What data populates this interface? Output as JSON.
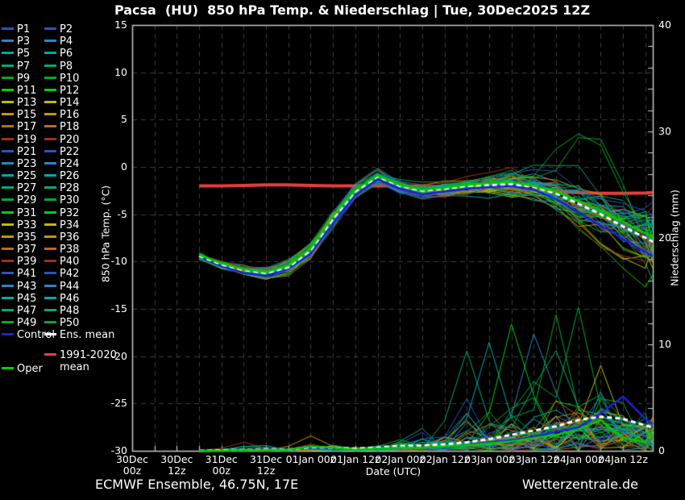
{
  "title": "Pacsa  (HU)  850 hPa Temp. & Niederschlag | Tue, 30Dec2025 12Z",
  "footer": {
    "left": "ECMWF Ensemble, 46.75N, 17E",
    "right": "Wetterzentrale.de"
  },
  "legend": {
    "member_labels": [
      "P1",
      "P2",
      "P3",
      "P4",
      "P5",
      "P6",
      "P7",
      "P8",
      "P9",
      "P10",
      "P11",
      "P12",
      "P13",
      "P14",
      "P15",
      "P16",
      "P17",
      "P18",
      "P19",
      "P20",
      "P21",
      "P22",
      "P23",
      "P24",
      "P25",
      "P26",
      "P27",
      "P28",
      "P29",
      "P30",
      "P31",
      "P32",
      "P33",
      "P34",
      "P35",
      "P36",
      "P37",
      "P38",
      "P39",
      "P40",
      "P41",
      "P42",
      "P43",
      "P44",
      "P45",
      "P46",
      "P47",
      "P48",
      "P49",
      "P50"
    ],
    "specials": [
      {
        "label": "Control",
        "color": "#1e1ee0"
      },
      {
        "label": "Ens. mean",
        "color": "#ffffff"
      },
      {
        "label": "1991-2020",
        "color": "#e64040"
      },
      {
        "label": "mean",
        "color": null
      },
      {
        "label": "Oper",
        "color": "#00cd00"
      }
    ]
  },
  "chart_data": {
    "type": "line",
    "title": "Pacsa  (HU)  850 hPa Temp. & Niederschlag | Tue, 30Dec2025 12Z",
    "xlabel": "Date (UTC)",
    "ylabel_left": "850 hPa Temp. (°C)",
    "ylabel_right": "Niederschlag (mm)",
    "x_tick_labels": [
      "30Dec 00z",
      "30Dec 12z",
      "31Dec 00z",
      "31Dec 12z",
      "01Jan 00z",
      "01Jan 12z",
      "02Jan 00z",
      "02Jan 12z",
      "03Jan 00z",
      "03Jan 12z",
      "04Jan 00z",
      "04Jan 12z"
    ],
    "x_tick_hours": [
      0,
      12,
      24,
      36,
      48,
      60,
      72,
      84,
      96,
      108,
      120,
      132
    ],
    "x_total_hours": 140,
    "grid_hours_step": 6,
    "y_left": {
      "min": -30,
      "max": 15,
      "ticks": [
        15,
        10,
        5,
        0,
        -5,
        -10,
        -15,
        -20,
        -25,
        -30
      ]
    },
    "y_right": {
      "min": 0,
      "max": 40,
      "ticks": [
        40,
        30,
        20,
        10,
        0
      ],
      "minor_step": 2
    },
    "times_h": [
      18,
      24,
      30,
      36,
      42,
      48,
      54,
      60,
      66,
      72,
      78,
      84,
      90,
      96,
      102,
      108,
      114,
      120,
      126,
      132,
      138,
      140
    ],
    "series": {
      "ens_mean_temp": [
        -9.4,
        -10.3,
        -10.9,
        -11.2,
        -10.6,
        -8.8,
        -5.5,
        -2.6,
        -1.0,
        -2.0,
        -2.5,
        -2.3,
        -2.0,
        -1.9,
        -1.8,
        -2.1,
        -2.8,
        -3.9,
        -5.0,
        -6.3,
        -7.5,
        -7.9
      ],
      "member_spread_temp": [
        0.5,
        0.6,
        0.7,
        0.8,
        0.9,
        1.0,
        1.1,
        1.0,
        0.9,
        0.9,
        0.9,
        0.9,
        1.0,
        1.2,
        1.5,
        1.8,
        2.2,
        2.8,
        3.3,
        3.7,
        4.1,
        4.3
      ],
      "control_temp": [
        -9.5,
        -10.5,
        -11.2,
        -11.5,
        -10.8,
        -9.2,
        -6.0,
        -3.0,
        -1.3,
        -2.3,
        -2.9,
        -2.6,
        -2.3,
        -2.1,
        -2.0,
        -2.4,
        -3.4,
        -4.8,
        -6.2,
        -7.6,
        -9.0,
        -9.4
      ],
      "oper_temp": [
        -9.3,
        -10.2,
        -10.8,
        -11.1,
        -10.4,
        -8.6,
        -5.2,
        -2.4,
        -0.9,
        -1.9,
        -2.4,
        -2.2,
        -1.9,
        -1.7,
        -1.6,
        -2.0,
        -2.6,
        -3.6,
        -4.6,
        -5.8,
        -7.0,
        -7.4
      ],
      "clim_mean_temp": [
        -2.0,
        -2.0,
        -1.95,
        -1.9,
        -1.9,
        -1.95,
        -2.0,
        -2.0,
        -2.0,
        -2.0,
        -2.05,
        -2.1,
        -2.1,
        -2.15,
        -2.3,
        -2.45,
        -2.6,
        -2.7,
        -2.8,
        -2.8,
        -2.75,
        -2.7
      ],
      "ens_mean_precip": [
        0.0,
        0.05,
        0.1,
        0.15,
        0.1,
        0.35,
        0.3,
        0.2,
        0.3,
        0.45,
        0.5,
        0.6,
        0.8,
        1.1,
        1.5,
        1.9,
        2.3,
        2.9,
        3.2,
        3.0,
        2.4,
        2.2
      ],
      "control_precip": [
        0,
        0,
        0.1,
        0.2,
        0.1,
        0.3,
        0.2,
        0.1,
        0.2,
        0.3,
        0.4,
        0.3,
        0.5,
        0.8,
        1.0,
        1.3,
        1.8,
        2.2,
        3.5,
        5.1,
        3.0,
        2.5
      ],
      "oper_precip": [
        0,
        0,
        0.1,
        0.1,
        0.1,
        0.4,
        0.3,
        0.1,
        0.2,
        0.3,
        0.3,
        0.4,
        0.5,
        0.7,
        0.9,
        1.2,
        1.5,
        2.0,
        2.9,
        1.2,
        0.8,
        2.0
      ],
      "member_precip_max": [
        0.1,
        0.3,
        0.8,
        0.9,
        0.6,
        1.5,
        1.2,
        0.8,
        1.5,
        2.5,
        4.0,
        6.0,
        9.5,
        10.5,
        12.0,
        11.5,
        12.8,
        13.5,
        13.0,
        11.0,
        9.0,
        8.5
      ]
    },
    "temp_outliers": [
      {
        "member": 29,
        "amp": 9.2,
        "center": 122,
        "width": 11
      },
      {
        "member": 9,
        "amp": 7.8,
        "center": 125,
        "width": 10
      },
      {
        "member": 27,
        "amp": 3.5,
        "center": 116,
        "width": 10
      }
    ],
    "forced_precip_spikes": [
      {
        "member": 29,
        "t": 114,
        "mm": 12.8
      },
      {
        "member": 9,
        "t": 120,
        "mm": 13.5
      },
      {
        "member": 11,
        "t": 102,
        "mm": 11.9
      },
      {
        "member": 3,
        "t": 108,
        "mm": 11.0
      },
      {
        "member": 27,
        "t": 90,
        "mm": 9.4
      },
      {
        "member": 45,
        "t": 96,
        "mm": 10.2
      },
      {
        "member": 13,
        "t": 126,
        "mm": 8.0
      },
      {
        "member": 19,
        "t": 30,
        "mm": 0.8
      },
      {
        "member": 35,
        "t": 48,
        "mm": 1.4
      }
    ],
    "colors": {
      "member_palette": [
        "#2a52be",
        "#2e82c8",
        "#00a8a8",
        "#00a878",
        "#00aa30",
        "#00d200",
        "#bcbc00",
        "#c89600",
        "#c06a10",
        "#a03018"
      ],
      "control": "#1e1ee0",
      "ens_mean": "#ffffff",
      "clim_mean": "#e64040",
      "oper": "#00cd00",
      "grid": "#3c3c38",
      "frame": "#c8c8c8",
      "background": "#000000"
    }
  }
}
